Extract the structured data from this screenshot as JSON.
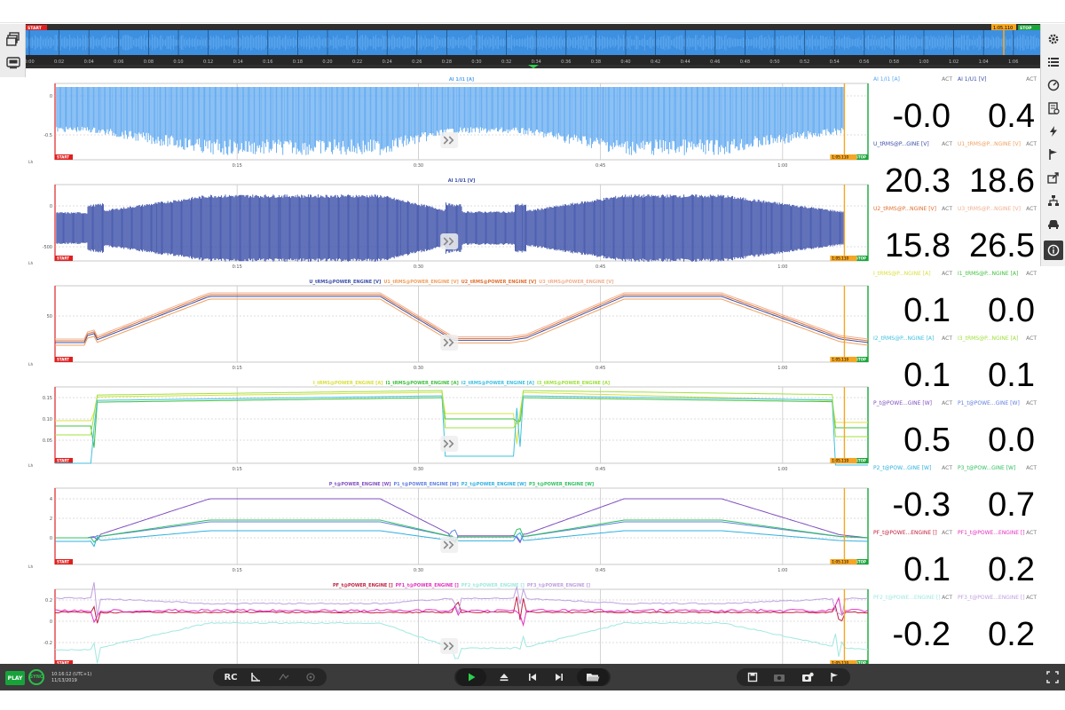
{
  "colors": {
    "accent_green": "#1db954",
    "start_red": "#e02020",
    "stop_green": "#1aa53a",
    "cursor_orange": "#f5a623",
    "current_blue": "#5aa6f0",
    "voltage_navy": "#3a4fa8"
  },
  "overview": {
    "cursor_label": "1:05.110",
    "start_label": "START",
    "stop_label": "STOP",
    "ticks": [
      "0:00",
      "0:02",
      "0:04",
      "0:06",
      "0:08",
      "0:10",
      "0:12",
      "0:14",
      "0:16",
      "0:18",
      "0:20",
      "0:22",
      "0:24",
      "0:26",
      "0:28",
      "0:30",
      "0:32",
      "0:34",
      "0:36",
      "0:38",
      "0:40",
      "0:42",
      "0:44",
      "0:46",
      "0:48",
      "0:50",
      "0:52",
      "0:54",
      "0:56",
      "0:58",
      "1:00",
      "1:02",
      "1:04",
      "1:06"
    ]
  },
  "left_tools": [
    {
      "icon": "layers-icon"
    },
    {
      "icon": "recorder-icon"
    }
  ],
  "right_tools": [
    {
      "icon": "gear-icon"
    },
    {
      "icon": "list-icon"
    },
    {
      "icon": "gauge-icon"
    },
    {
      "icon": "report-icon"
    },
    {
      "icon": "lightning-icon"
    },
    {
      "icon": "flag-icon"
    },
    {
      "icon": "export-icon"
    },
    {
      "icon": "network-icon"
    },
    {
      "icon": "car-icon"
    },
    {
      "icon": "info-icon"
    }
  ],
  "charts": [
    {
      "title_parts": [
        {
          "text": "AI 1/I1 [A]",
          "color": "#5aa6f0"
        }
      ],
      "yticks": [
        "0",
        "-0.5"
      ],
      "unit_label": "Lh",
      "xticks": [
        "0:15",
        "0:30",
        "0:45",
        "1:00"
      ],
      "start_label": "START",
      "stop_label": "STOP",
      "cursor_label": "1:05.110"
    },
    {
      "title_parts": [
        {
          "text": "AI 1/U1 [V]",
          "color": "#3a4fa8"
        }
      ],
      "yticks": [
        "0",
        "-500"
      ],
      "unit_label": "Lh",
      "xticks": [
        "0:15",
        "0:30",
        "0:45",
        "1:00"
      ],
      "start_label": "START",
      "stop_label": "STOP",
      "cursor_label": "1:05.110"
    },
    {
      "title_parts": [
        {
          "text": "U_tRMS@POWER_ENGINE [V]",
          "color": "#3a4fa8"
        },
        {
          "text": "U1_tRMS@POWER_ENGINE [V]",
          "color": "#f0a060"
        },
        {
          "text": "U2_tRMS@POWER_ENGINE [V]",
          "color": "#e07030"
        },
        {
          "text": "U3_tRMS@POWER_ENGINE [V]",
          "color": "#f0b090"
        }
      ],
      "yticks": [
        "50"
      ],
      "unit_label": "Lh",
      "xticks": [
        "0:15",
        "0:30",
        "0:45",
        "1:00"
      ],
      "start_label": "START",
      "stop_label": "STOP",
      "cursor_label": "1:05.110"
    },
    {
      "title_parts": [
        {
          "text": "I_tRMS@POWER_ENGINE [A]",
          "color": "#d8e040"
        },
        {
          "text": "I1_tRMS@POWER_ENGINE [A]",
          "color": "#40c040"
        },
        {
          "text": "I2_tRMS@POWER_ENGINE [A]",
          "color": "#40c0e0"
        },
        {
          "text": "I3_tRMS@POWER_ENGINE [A]",
          "color": "#a0e040"
        }
      ],
      "yticks": [
        "0.15",
        "0.10",
        "0.05"
      ],
      "unit_label": "Lh",
      "xticks": [
        "0:15",
        "0:30",
        "0:45",
        "1:00"
      ],
      "start_label": "START",
      "stop_label": "STOP",
      "cursor_label": "1:05.110"
    },
    {
      "title_parts": [
        {
          "text": "P_t@POWER_ENGINE [W]",
          "color": "#8050c0"
        },
        {
          "text": "P1_t@POWER_ENGINE [W]",
          "color": "#6080e0"
        },
        {
          "text": "P2_t@POWER_ENGINE [W]",
          "color": "#30b0e0"
        },
        {
          "text": "P3_t@POWER_ENGINE [W]",
          "color": "#30c060"
        }
      ],
      "yticks": [
        "4",
        "2",
        "0"
      ],
      "unit_label": "Lh",
      "xticks": [
        "0:15",
        "0:30",
        "0:45",
        "1:00"
      ],
      "start_label": "START",
      "stop_label": "STOP",
      "cursor_label": "1:05.110"
    },
    {
      "title_parts": [
        {
          "text": "PF_t@POWER_ENGINE []",
          "color": "#c02040"
        },
        {
          "text": "PF1_t@POWER_ENGINE []",
          "color": "#e030c0"
        },
        {
          "text": "PF2_t@POWER_ENGINE []",
          "color": "#a0e8e0"
        },
        {
          "text": "PF3_t@POWER_ENGINE []",
          "color": "#c0a0e0"
        }
      ],
      "yticks": [
        "0.2",
        "0",
        "-0.2"
      ],
      "unit_label": "Lh",
      "xticks": [
        "0:15",
        "0:30",
        "0:45",
        "1:00"
      ],
      "start_label": "START",
      "stop_label": "STOP",
      "cursor_label": "1:05.110"
    }
  ],
  "values": [
    {
      "label": "AI 1/I1 [A]",
      "label_color": "#5aa6f0",
      "act": "ACT",
      "value": "-0.0"
    },
    {
      "label": "AI 1/U1 [V]",
      "label_color": "#3a4fa8",
      "act": "ACT",
      "value": "0.4"
    },
    {
      "label": "U_tRMS@P...GINE [V]",
      "label_color": "#3a4fa8",
      "act": "ACT",
      "value": "20.3"
    },
    {
      "label": "U1_tRMS@P...NGINE [V]",
      "label_color": "#f0a060",
      "act": "ACT",
      "value": "18.6"
    },
    {
      "label": "U2_tRMS@P...NGINE [V]",
      "label_color": "#e07030",
      "act": "ACT",
      "value": "15.8"
    },
    {
      "label": "U3_tRMS@P...NGINE [V]",
      "label_color": "#f0b090",
      "act": "ACT",
      "value": "26.5"
    },
    {
      "label": "I_tRMS@P...NGINE [A]",
      "label_color": "#d8e040",
      "act": "ACT",
      "value": "0.1"
    },
    {
      "label": "I1_tRMS@P...NGINE [A]",
      "label_color": "#40c040",
      "act": "ACT",
      "value": "0.0"
    },
    {
      "label": "I2_tRMS@P...NGINE [A]",
      "label_color": "#40c0e0",
      "act": "ACT",
      "value": "0.1"
    },
    {
      "label": "I3_tRMS@P...NGINE [A]",
      "label_color": "#a0e040",
      "act": "ACT",
      "value": "0.1"
    },
    {
      "label": "P_t@POWE...GINE [W]",
      "label_color": "#8050c0",
      "act": "ACT",
      "value": "0.5"
    },
    {
      "label": "P1_t@POWE...GINE [W]",
      "label_color": "#6080e0",
      "act": "ACT",
      "value": "0.0"
    },
    {
      "label": "P2_t@POW...GINE [W]",
      "label_color": "#30b0e0",
      "act": "ACT",
      "value": "-0.3"
    },
    {
      "label": "P3_t@POW...GINE [W]",
      "label_color": "#30c060",
      "act": "ACT",
      "value": "0.7"
    },
    {
      "label": "PF_t@POWE...ENGINE []",
      "label_color": "#c02040",
      "act": "ACT",
      "value": "0.1"
    },
    {
      "label": "PF1_t@POWE...ENGINE []",
      "label_color": "#e030c0",
      "act": "ACT",
      "value": "0.2"
    },
    {
      "label": "PF2_t@POWE...ENGINE []",
      "label_color": "#a0e8e0",
      "act": "ACT",
      "value": "-0.2"
    },
    {
      "label": "PF3_t@POWE...ENGINE []",
      "label_color": "#c0a0e0",
      "act": "ACT",
      "value": "0.2"
    }
  ],
  "bottombar": {
    "play_label": "PLAY",
    "sync_label": "SYNC",
    "time": "10:16:12 (UTC+1)",
    "date": "11/13/2019",
    "rc_label": "RC"
  }
}
